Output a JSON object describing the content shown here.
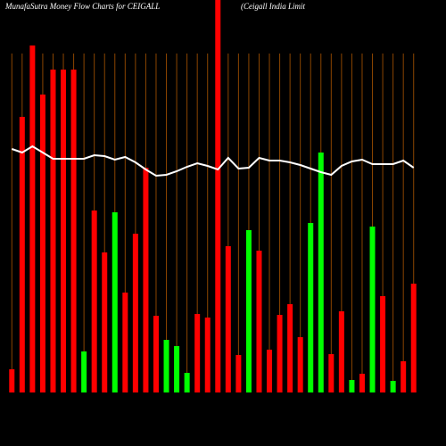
{
  "chart_data": {
    "type": "bar",
    "title": "MunafaSutra  Money Flow  Charts for CEIGALL",
    "subtitle": "(Ceigall India  Limit",
    "categories": [
      null,
      null,
      null,
      null,
      null,
      null,
      null,
      null,
      null,
      null,
      null,
      null,
      null,
      null,
      null,
      null,
      null,
      null,
      null,
      null,
      null,
      null,
      null,
      null,
      null,
      null,
      null,
      null,
      null,
      null,
      null,
      null,
      null,
      null,
      null,
      null,
      null,
      null,
      null,
      null
    ],
    "series": [
      {
        "values": [
          26,
          309,
          389,
          334,
          362,
          362,
          362,
          46,
          204,
          157,
          202,
          112,
          178,
          252,
          86,
          59,
          52,
          22,
          88,
          84,
          440,
          164,
          42,
          182,
          159,
          48,
          87,
          99,
          62,
          190,
          269,
          43,
          91,
          14,
          21,
          186,
          108,
          13,
          35,
          122
        ],
        "colors": [
          "#ff0000",
          "#ff0000",
          "#ff0000",
          "#ff0000",
          "#ff0000",
          "#ff0000",
          "#ff0000",
          "#00ff00",
          "#ff0000",
          "#ff0000",
          "#00ff00",
          "#ff0000",
          "#ff0000",
          "#ff0000",
          "#ff0000",
          "#00ff00",
          "#00ff00",
          "#00ff00",
          "#ff0000",
          "#ff0000",
          "#ff0000",
          "#ff0000",
          "#ff0000",
          "#00ff00",
          "#ff0000",
          "#ff0000",
          "#ff0000",
          "#ff0000",
          "#ff0000",
          "#00ff00",
          "#00ff00",
          "#ff0000",
          "#ff0000",
          "#00ff00",
          "#ff0000",
          "#00ff00",
          "#ff0000",
          "#00ff00",
          "#ff0000",
          "#ff0000"
        ]
      },
      {
        "type": "line",
        "color": "#ffffff",
        "values": [
          273,
          269,
          276,
          269,
          262,
          262,
          262,
          262,
          266,
          265,
          261,
          264,
          258,
          250,
          243,
          244,
          248,
          253,
          257,
          254,
          250,
          263,
          251,
          252,
          263,
          260,
          260,
          258,
          255,
          251,
          247,
          244,
          254,
          259,
          261,
          256,
          256,
          256,
          260,
          252
        ]
      }
    ],
    "ylim": [
      0,
      440
    ],
    "grid_color": "#8b4500"
  }
}
